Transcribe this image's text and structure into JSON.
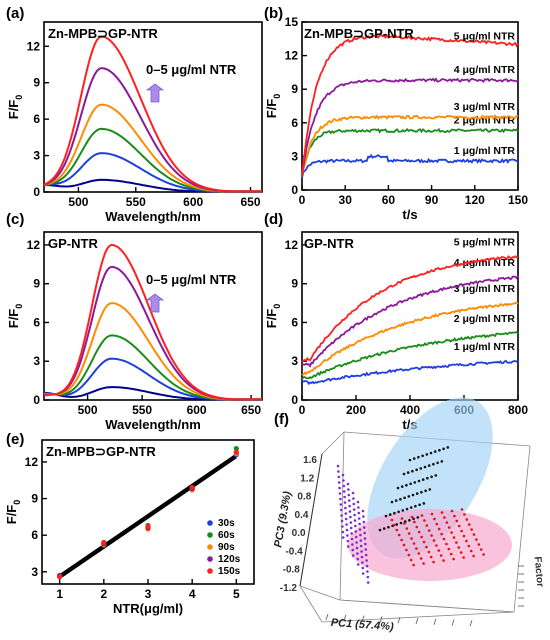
{
  "chart_data": [
    {
      "id": "a",
      "letter": "(a)",
      "type": "line",
      "title": "Zn-MPB⊃GP-NTR",
      "annotation": "0–5 μg/ml NTR",
      "xlabel": "Wavelength/nm",
      "ylabel": "F/F",
      "ylabel_sub": "0",
      "xlim": [
        470,
        660
      ],
      "ylim": [
        0,
        14
      ],
      "xticks": [
        500,
        550,
        600,
        650
      ],
      "yticks": [
        0,
        3,
        6,
        9,
        12
      ],
      "series": [
        {
          "color": "#00008b",
          "peak": 1.0
        },
        {
          "color": "#1f3fe0",
          "peak": 3.2
        },
        {
          "color": "#1a8c1a",
          "peak": 5.2
        },
        {
          "color": "#ff8c00",
          "peak": 7.2
        },
        {
          "color": "#8b1a9b",
          "peak": 10.2
        },
        {
          "color": "#ff2020",
          "peak": 12.8
        }
      ],
      "peak_x": 520
    },
    {
      "id": "b",
      "letter": "(b)",
      "type": "line",
      "title": "Zn-MPB⊃GP-NTR",
      "xlabel": "t/s",
      "ylabel": "F/F",
      "ylabel_sub": "0",
      "xlim": [
        0,
        150
      ],
      "ylim": [
        0,
        15
      ],
      "xticks": [
        0,
        30,
        60,
        90,
        120,
        150
      ],
      "yticks": [
        0,
        3,
        6,
        9,
        12,
        15
      ],
      "series": [
        {
          "name": "1 μg/ml NTR",
          "color": "#1f3fe0",
          "plateau": 2.6
        },
        {
          "name": "2 μg/ml NTR",
          "color": "#1a8c1a",
          "plateau": 5.3
        },
        {
          "name": "3 μg/ml NTR",
          "color": "#ff8c00",
          "plateau": 6.5
        },
        {
          "name": "4 μg/ml NTR",
          "color": "#8b1a9b",
          "plateau": 9.8
        },
        {
          "name": "5 μg/ml NTR",
          "color": "#ff2020",
          "plateau": 12.8
        }
      ]
    },
    {
      "id": "c",
      "letter": "(c)",
      "type": "line",
      "title": "GP-NTR",
      "annotation": "0–5 μg/ml NTR",
      "xlabel": "Wavelength/nm",
      "ylabel": "F/F",
      "ylabel_sub": "0",
      "xlim": [
        460,
        660
      ],
      "ylim": [
        0,
        13
      ],
      "xticks": [
        500,
        550,
        600,
        650
      ],
      "yticks": [
        0,
        3,
        6,
        9,
        12
      ],
      "series": [
        {
          "color": "#00008b",
          "peak": 1.0
        },
        {
          "color": "#1f3fe0",
          "peak": 3.2
        },
        {
          "color": "#1a8c1a",
          "peak": 5.0
        },
        {
          "color": "#ff8c00",
          "peak": 7.5
        },
        {
          "color": "#8b1a9b",
          "peak": 10.3
        },
        {
          "color": "#ff2020",
          "peak": 12.0
        }
      ],
      "peak_x": 522
    },
    {
      "id": "d",
      "letter": "(d)",
      "type": "line",
      "title": "GP-NTR",
      "xlabel": "t/s",
      "ylabel": "F/F",
      "ylabel_sub": "0",
      "xlim": [
        0,
        800
      ],
      "ylim": [
        0,
        13
      ],
      "xticks": [
        0,
        200,
        400,
        600,
        800
      ],
      "yticks": [
        0,
        3,
        6,
        9,
        12
      ],
      "series": [
        {
          "name": "1 μg/ml NTR",
          "color": "#1f3fe0",
          "end": 3.0
        },
        {
          "name": "2 μg/ml NTR",
          "color": "#1a8c1a",
          "end": 5.2
        },
        {
          "name": "3 μg/ml NTR",
          "color": "#ff8c00",
          "end": 7.5
        },
        {
          "name": "4 μg/ml NTR",
          "color": "#8b1a9b",
          "end": 9.5
        },
        {
          "name": "5 μg/ml NTR",
          "color": "#ff2020",
          "end": 11.1
        }
      ]
    },
    {
      "id": "e",
      "letter": "(e)",
      "type": "scatter",
      "title": "Zn-MPB⊃GP-NTR",
      "xlabel": "NTR(μg/ml)",
      "ylabel": "F/F",
      "ylabel_sub": "0",
      "xlim": [
        0.6,
        5.4
      ],
      "ylim": [
        2.0,
        13.8
      ],
      "xticks": [
        1,
        2,
        3,
        4,
        5
      ],
      "yticks": [
        3,
        6,
        9,
        12
      ],
      "fit": {
        "x": [
          1,
          5
        ],
        "y": [
          2.6,
          12.5
        ]
      },
      "x": [
        1,
        2,
        3,
        4,
        5
      ],
      "series": [
        {
          "name": "30s",
          "color": "#1f3fe0",
          "values": [
            2.6,
            5.3,
            6.6,
            9.8,
            12.6
          ]
        },
        {
          "name": "60s",
          "color": "#1a8c1a",
          "values": [
            2.7,
            5.4,
            6.8,
            9.9,
            13.1
          ]
        },
        {
          "name": "90s",
          "color": "#ff8c00",
          "values": [
            2.6,
            5.2,
            6.5,
            9.7,
            12.7
          ]
        },
        {
          "name": "120s",
          "color": "#8b1a9b",
          "values": [
            2.7,
            5.3,
            6.6,
            9.8,
            12.8
          ]
        },
        {
          "name": "150s",
          "color": "#ff2020",
          "values": [
            2.6,
            5.4,
            6.7,
            9.9,
            12.8
          ]
        }
      ]
    },
    {
      "id": "f",
      "letter": "(f)",
      "type": "scatter",
      "xlabel": "PC1 (57.4%)",
      "ylabel": "PC3 (9.3%)",
      "zlabel": "Factor",
      "yticks": [
        1.6,
        1.2,
        0.8,
        0.4,
        0.0,
        -0.4,
        -0.8,
        -1.2
      ],
      "ytick_labels": [
        "1.6",
        "1.2",
        "0.8",
        "0.4",
        "0.0",
        "-0.4",
        "-0.8",
        "-1.2"
      ],
      "clusters": [
        {
          "color": "#7b2bd6"
        },
        {
          "color": "#111111"
        },
        {
          "color": "#e01010"
        }
      ],
      "ellipse_colors": [
        "#9fd3f5",
        "#f7a8cf"
      ]
    }
  ]
}
